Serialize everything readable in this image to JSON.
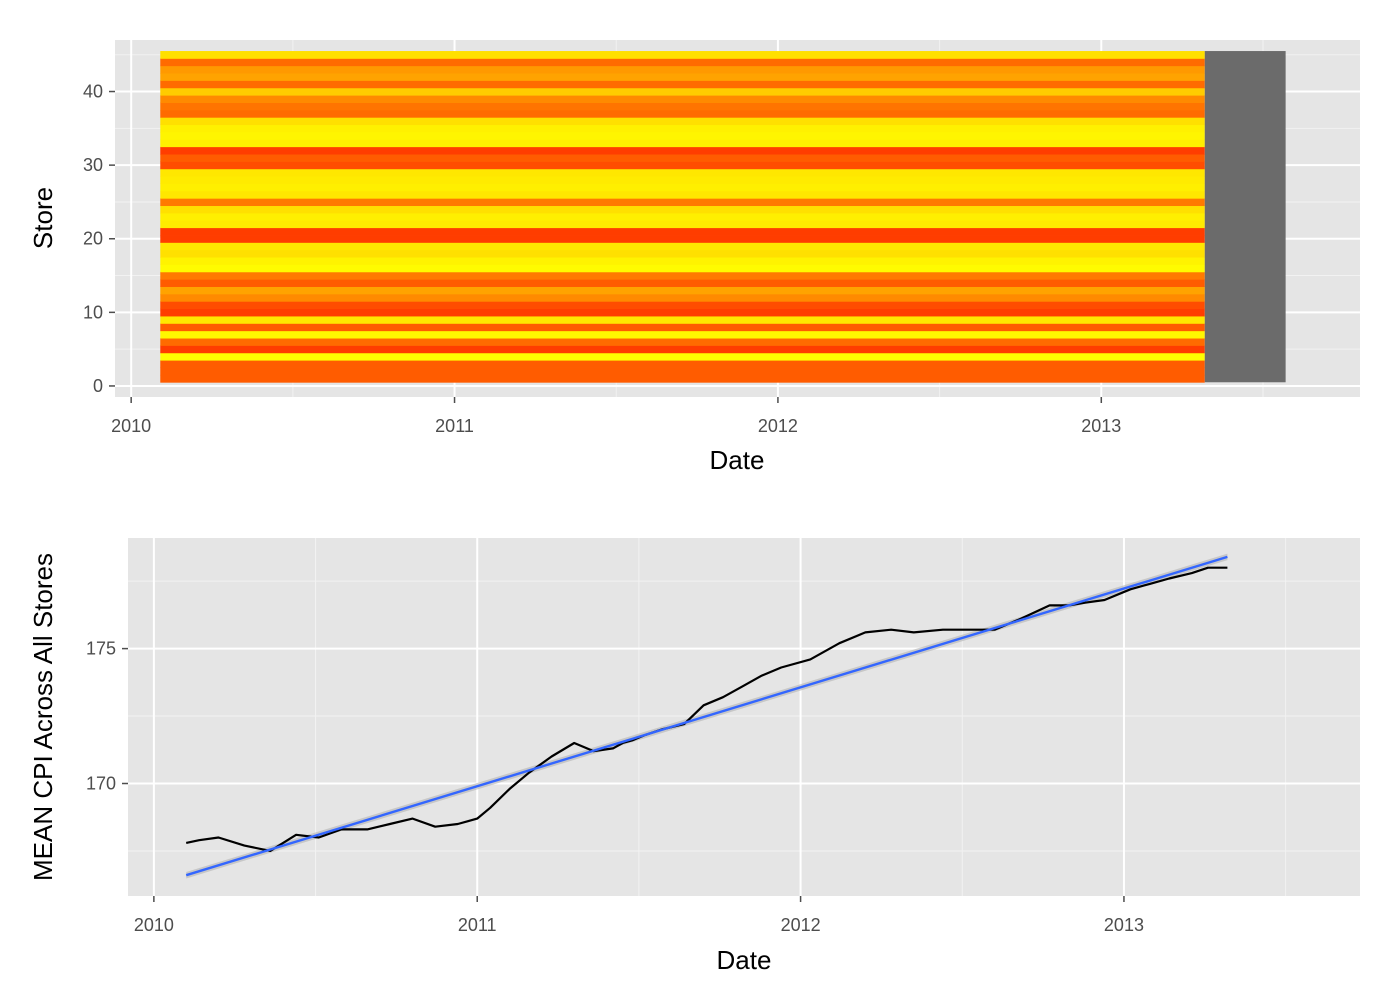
{
  "chart_data": [
    {
      "type": "heatmap",
      "title": "",
      "xlabel": "Date",
      "ylabel": "Store",
      "x_ticks": [
        "2010",
        "2011",
        "2012",
        "2013"
      ],
      "y_ticks": [
        "0",
        "10",
        "20",
        "30",
        "40"
      ],
      "xlim": [
        2009.95,
        2013.8
      ],
      "ylim": [
        -1.5,
        47
      ],
      "x_range": [
        2010.09,
        2013.32
      ],
      "na_x_range": [
        2013.32,
        2013.57
      ],
      "stores": [
        1,
        45
      ],
      "legend": "none",
      "grid": true,
      "colors": {
        "low": "#ff0000",
        "mid": "#ff9900",
        "high": "#ffff00",
        "missing": "#6b6b6b",
        "panel": "#e5e5e5"
      },
      "store_values": [
        0.3,
        0.3,
        0.3,
        1.0,
        0.2,
        0.35,
        0.96,
        0.3,
        0.88,
        0.2,
        0.25,
        0.45,
        0.55,
        0.3,
        0.4,
        0.98,
        0.94,
        0.85,
        0.88,
        0.2,
        0.2,
        0.9,
        0.92,
        0.85,
        0.4,
        0.88,
        0.92,
        0.9,
        0.88,
        0.25,
        0.3,
        0.2,
        0.92,
        0.95,
        0.93,
        0.85,
        0.35,
        0.38,
        0.45,
        0.75,
        0.35,
        0.55,
        0.5,
        0.35,
        0.85
      ]
    },
    {
      "type": "line",
      "title": "",
      "xlabel": "Date",
      "ylabel": "MEAN CPI Across All Stores",
      "x_ticks": [
        "2010",
        "2011",
        "2012",
        "2013"
      ],
      "y_ticks": [
        "170",
        "175"
      ],
      "xlim": [
        2009.92,
        2013.73
      ],
      "ylim": [
        165.83,
        179.1
      ],
      "legend": "none",
      "grid": true,
      "series": [
        {
          "color": "#000000",
          "x": [
            2010.1,
            2010.14,
            2010.2,
            2010.28,
            2010.36,
            2010.44,
            2010.51,
            2010.58,
            2010.66,
            2010.73,
            2010.8,
            2010.87,
            2010.94,
            2010.97,
            2011.0,
            2011.04,
            2011.1,
            2011.16,
            2011.23,
            2011.3,
            2011.36,
            2011.42,
            2011.45,
            2011.48,
            2011.52,
            2011.57,
            2011.64,
            2011.7,
            2011.76,
            2011.82,
            2011.88,
            2011.94,
            2012.03,
            2012.12,
            2012.2,
            2012.28,
            2012.35,
            2012.44,
            2012.52,
            2012.6,
            2012.68,
            2012.77,
            2012.83,
            2012.88,
            2012.94,
            2013.02,
            2013.08,
            2013.14,
            2013.21,
            2013.26,
            2013.32
          ],
          "y": [
            167.8,
            167.9,
            168.0,
            167.7,
            167.5,
            168.1,
            168.0,
            168.3,
            168.3,
            168.5,
            168.7,
            168.4,
            168.5,
            168.6,
            168.7,
            169.1,
            169.8,
            170.4,
            171.0,
            171.5,
            171.2,
            171.3,
            171.5,
            171.6,
            171.8,
            172.0,
            172.2,
            172.9,
            173.2,
            173.6,
            174.0,
            174.3,
            174.6,
            175.2,
            175.6,
            175.7,
            175.6,
            175.7,
            175.7,
            175.7,
            176.1,
            176.6,
            176.6,
            176.7,
            176.8,
            177.2,
            177.4,
            177.6,
            177.8,
            178.0,
            178.0
          ]
        },
        {
          "color": "#3366ff",
          "x": [
            2010.1,
            2013.32
          ],
          "y": [
            166.6,
            178.4
          ]
        }
      ]
    }
  ]
}
